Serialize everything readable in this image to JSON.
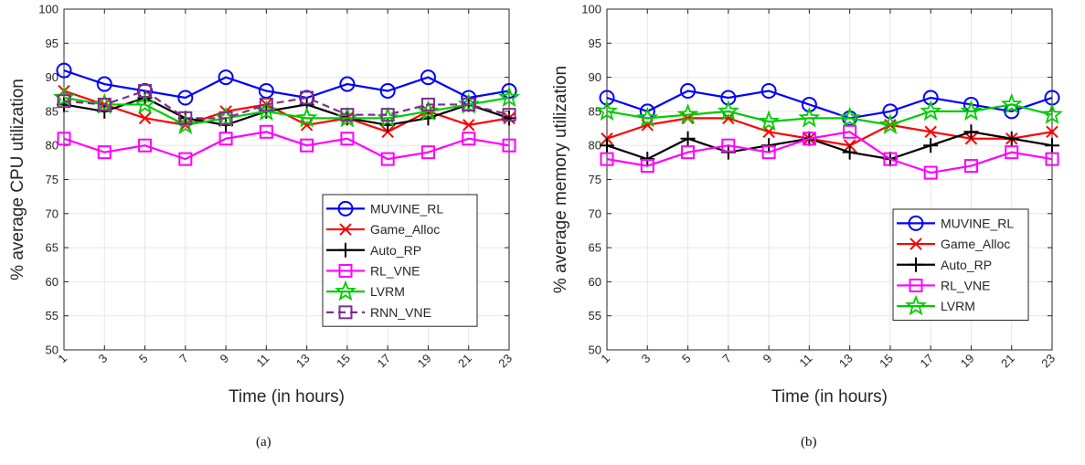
{
  "chart_data": [
    {
      "type": "line",
      "xlabel": "Time (in hours)",
      "ylabel": "% average CPU utilization",
      "caption": "(a)",
      "x": [
        1,
        3,
        5,
        7,
        9,
        11,
        13,
        15,
        17,
        19,
        21,
        23
      ],
      "xlim": [
        1,
        23
      ],
      "ylim": [
        50,
        100
      ],
      "xticks": [
        "1",
        "3",
        "5",
        "7",
        "9",
        "11",
        "13",
        "15",
        "17",
        "19",
        "21",
        "23"
      ],
      "yticks": [
        "50",
        "55",
        "60",
        "65",
        "70",
        "75",
        "80",
        "85",
        "90",
        "95",
        "100"
      ],
      "grid": true,
      "legend_position": "bottom-right",
      "series": [
        {
          "name": "MUVINE_RL",
          "color": "#0000ff",
          "marker": "circle",
          "dash": "solid",
          "values": [
            91,
            89,
            88,
            87,
            90,
            88,
            87,
            89,
            88,
            90,
            87,
            88
          ]
        },
        {
          "name": "Game_Alloc",
          "color": "#ff0000",
          "marker": "x",
          "dash": "solid",
          "values": [
            88,
            86,
            84,
            83,
            85,
            86,
            83,
            84,
            82,
            85,
            83,
            84
          ]
        },
        {
          "name": "Auto_RP",
          "color": "#000000",
          "marker": "plus",
          "dash": "solid",
          "values": [
            86,
            85,
            87,
            84,
            83,
            85,
            86,
            84,
            83,
            84,
            86,
            84
          ]
        },
        {
          "name": "RL_VNE",
          "color": "#ff00ff",
          "marker": "square",
          "dash": "solid",
          "values": [
            81,
            79,
            80,
            78,
            81,
            82,
            80,
            81,
            78,
            79,
            81,
            80
          ]
        },
        {
          "name": "LVRM",
          "color": "#00cc00",
          "marker": "star",
          "dash": "solid",
          "values": [
            87,
            86,
            86,
            83,
            84,
            85,
            84,
            84,
            84,
            85,
            86,
            87
          ]
        },
        {
          "name": "RNN_VNE",
          "color": "#7e2f8e",
          "marker": "square",
          "dash": "dashed",
          "values": [
            86.5,
            86,
            88,
            84,
            84,
            86,
            87,
            84.5,
            84.5,
            86,
            86,
            84.5
          ]
        }
      ]
    },
    {
      "type": "line",
      "xlabel": "Time (in hours)",
      "ylabel": "% average memory utilization",
      "caption": "(b)",
      "x": [
        1,
        3,
        5,
        7,
        9,
        11,
        13,
        15,
        17,
        19,
        21,
        23
      ],
      "xlim": [
        1,
        23
      ],
      "ylim": [
        50,
        100
      ],
      "xticks": [
        "1",
        "3",
        "5",
        "7",
        "9",
        "11",
        "13",
        "15",
        "17",
        "19",
        "21",
        "23"
      ],
      "yticks": [
        "50",
        "55",
        "60",
        "65",
        "70",
        "75",
        "80",
        "85",
        "90",
        "95",
        "100"
      ],
      "grid": true,
      "legend_position": "middle-right",
      "series": [
        {
          "name": "MUVINE_RL",
          "color": "#0000ff",
          "marker": "circle",
          "dash": "solid",
          "values": [
            87,
            85,
            88,
            87,
            88,
            86,
            84,
            85,
            87,
            86,
            85,
            87
          ]
        },
        {
          "name": "Game_Alloc",
          "color": "#ff0000",
          "marker": "x",
          "dash": "solid",
          "values": [
            81,
            83,
            84,
            84,
            82,
            81,
            80,
            83,
            82,
            81,
            81,
            82
          ]
        },
        {
          "name": "Auto_RP",
          "color": "#000000",
          "marker": "plus",
          "dash": "solid",
          "values": [
            80,
            78,
            81,
            79,
            80,
            81,
            79,
            78,
            80,
            82,
            81,
            80
          ]
        },
        {
          "name": "RL_VNE",
          "color": "#ff00ff",
          "marker": "square",
          "dash": "solid",
          "values": [
            78,
            77,
            79,
            80,
            79,
            81,
            82,
            78,
            76,
            77,
            79,
            78
          ]
        },
        {
          "name": "LVRM",
          "color": "#00cc00",
          "marker": "star",
          "dash": "solid",
          "values": [
            85,
            84,
            84.5,
            85,
            83.5,
            84,
            84,
            83,
            85,
            85,
            86,
            84.5
          ]
        }
      ]
    }
  ]
}
